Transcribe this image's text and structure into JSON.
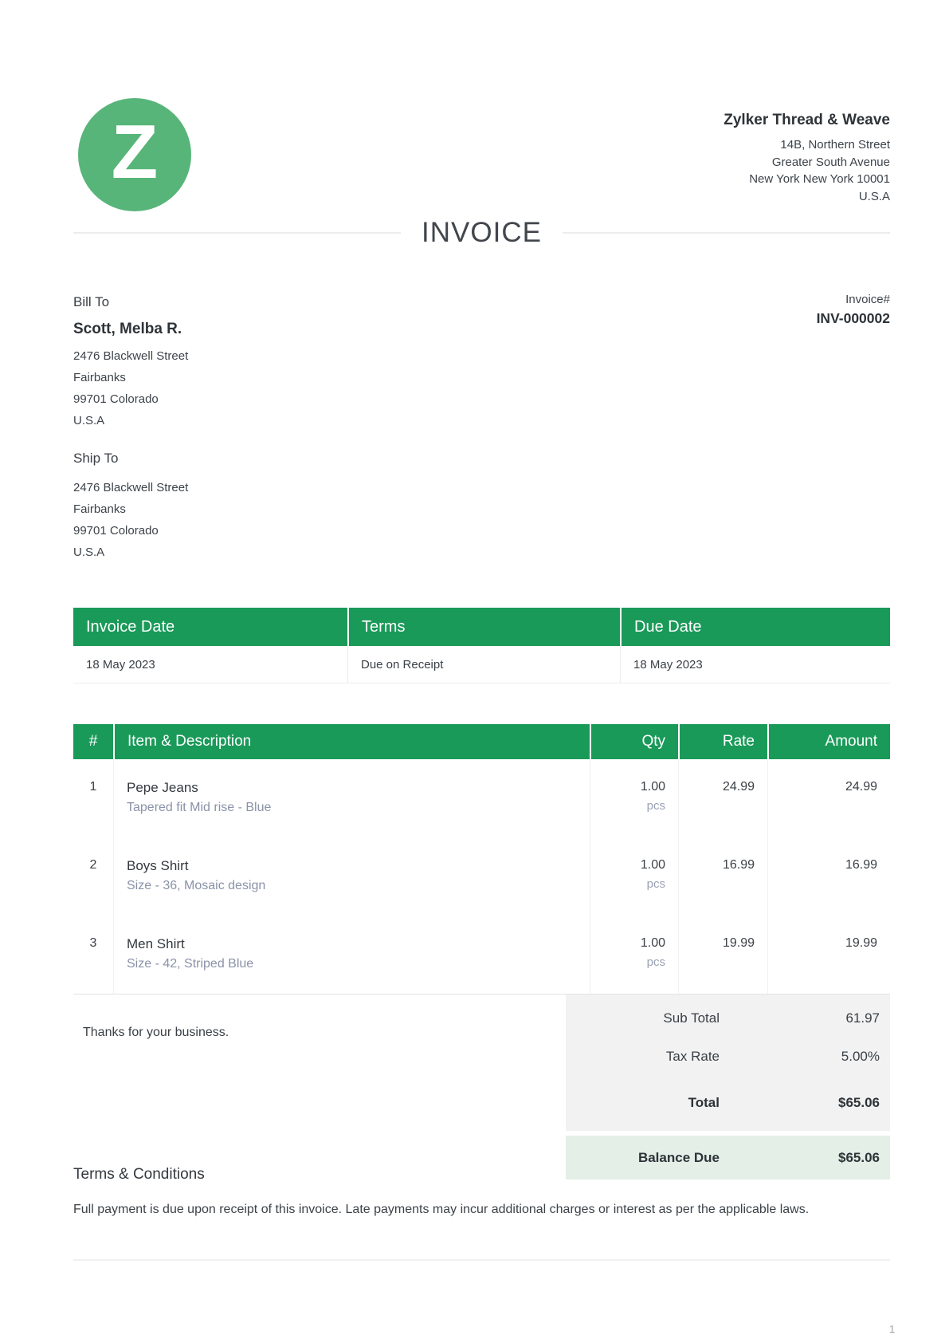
{
  "logo": {
    "letter": "Z"
  },
  "company": {
    "name": "Zylker Thread & Weave",
    "address_lines": [
      "14B, Northern Street",
      "Greater South Avenue",
      "New York New York 10001",
      "U.S.A"
    ]
  },
  "document_title": "INVOICE",
  "bill_to": {
    "label": "Bill To",
    "name": "Scott, Melba R.",
    "address_lines": [
      "2476 Blackwell Street",
      "Fairbanks",
      "99701 Colorado",
      "U.S.A"
    ]
  },
  "ship_to": {
    "label": "Ship To",
    "address_lines": [
      "2476 Blackwell Street",
      "Fairbanks",
      "99701 Colorado",
      "U.S.A"
    ]
  },
  "invoice_meta": {
    "label": "Invoice#",
    "number": "INV-000002"
  },
  "date_table": {
    "headers": [
      "Invoice Date",
      "Terms",
      "Due Date"
    ],
    "values": [
      "18 May 2023",
      "Due on Receipt",
      "18 May 2023"
    ]
  },
  "items_table": {
    "headers": {
      "num": "#",
      "desc": "Item & Description",
      "qty": "Qty",
      "rate": "Rate",
      "amount": "Amount"
    },
    "rows": [
      {
        "num": "1",
        "name": "Pepe Jeans",
        "desc": "Tapered fit Mid rise - Blue",
        "qty": "1.00",
        "unit": "pcs",
        "rate": "24.99",
        "amount": "24.99"
      },
      {
        "num": "2",
        "name": "Boys Shirt",
        "desc": "Size - 36, Mosaic design",
        "qty": "1.00",
        "unit": "pcs",
        "rate": "16.99",
        "amount": "16.99"
      },
      {
        "num": "3",
        "name": "Men Shirt",
        "desc": "Size - 42, Striped Blue",
        "qty": "1.00",
        "unit": "pcs",
        "rate": "19.99",
        "amount": "19.99"
      }
    ]
  },
  "totals": {
    "sub_total": {
      "label": "Sub Total",
      "value": "61.97"
    },
    "tax_rate": {
      "label": "Tax Rate",
      "value": "5.00%"
    },
    "total": {
      "label": "Total",
      "value": "$65.06"
    },
    "balance_due": {
      "label": "Balance Due",
      "value": "$65.06"
    }
  },
  "notes": {
    "thanks": "Thanks for your business."
  },
  "terms": {
    "heading": "Terms & Conditions",
    "body": "Full payment is due upon receipt of this invoice. Late payments may incur additional charges or interest as per the applicable laws."
  },
  "footer": {
    "page_number": "1"
  },
  "colors": {
    "accent_green": "#1a9a59",
    "logo_green": "#58b579",
    "balance_bg": "#e3efe7",
    "totals_bg": "#f2f2f2",
    "muted_text": "#8a92a8"
  }
}
